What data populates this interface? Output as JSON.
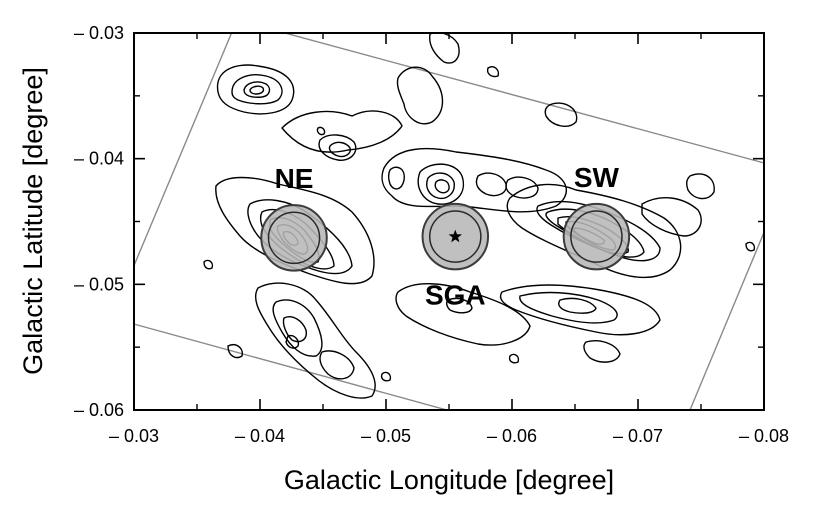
{
  "chart_data": {
    "type": "contour",
    "xlabel": "Galactic Longitude [degree]",
    "ylabel": "Galactic Latitude [degree]",
    "xlim": [
      -0.03,
      -0.08
    ],
    "ylim": [
      -0.06,
      -0.03
    ],
    "x_ticks": [
      -0.03,
      -0.04,
      -0.05,
      -0.06,
      -0.07,
      -0.08
    ],
    "x_tick_labels": [
      "– 0.03",
      "– 0.04",
      "– 0.05",
      "– 0.06",
      "– 0.07",
      "– 0.08"
    ],
    "y_ticks": [
      -0.03,
      -0.04,
      -0.05,
      -0.06
    ],
    "y_tick_labels": [
      "– 0.03",
      "– 0.04",
      "– 0.05",
      "– 0.06"
    ],
    "grid": false,
    "regions": [
      {
        "label": "NE",
        "x": -0.0427,
        "y": -0.0463,
        "radius": 0.0026
      },
      {
        "label": "SGA",
        "x": -0.0555,
        "y": -0.0462,
        "radius": 0.0026,
        "marker": "star"
      },
      {
        "label": "SW",
        "x": -0.0667,
        "y": -0.0462,
        "radius": 0.0026
      }
    ],
    "colors": {
      "region_fill": "#b7b7b7",
      "contour": "#000000",
      "footprint": "#8a8a8a"
    }
  }
}
